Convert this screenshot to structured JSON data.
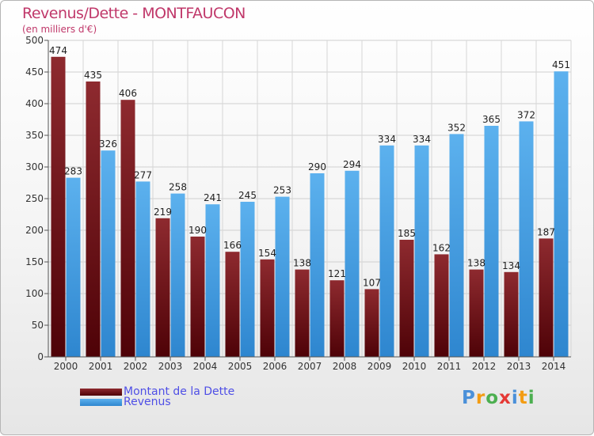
{
  "title": "Revenus/Dette - MONTFAUCON",
  "subtitle": "(en milliers d'€)",
  "legend": {
    "items": [
      {
        "label": "Montant de la Dette",
        "color": "#7a1a1f"
      },
      {
        "label": "Revenus",
        "color": "#3f9de3"
      }
    ]
  },
  "logo": {
    "text": "Proxiti",
    "letters": [
      {
        "char": "P",
        "color": "#4a90d9"
      },
      {
        "char": "r",
        "color": "#f39c12"
      },
      {
        "char": "o",
        "color": "#4caf50"
      },
      {
        "char": "x",
        "color": "#e53935"
      },
      {
        "char": "i",
        "color": "#4a90d9"
      },
      {
        "char": "t",
        "color": "#f39c12"
      },
      {
        "char": "i",
        "color": "#4caf50"
      }
    ]
  },
  "chart_data": {
    "type": "bar",
    "title": "Revenus/Dette - MONTFAUCON",
    "subtitle": "(en milliers d'€)",
    "categories": [
      "2000",
      "2001",
      "2002",
      "2003",
      "2004",
      "2005",
      "2006",
      "2007",
      "2008",
      "2009",
      "2010",
      "2011",
      "2012",
      "2013",
      "2014"
    ],
    "series": [
      {
        "name": "Montant de la Dette",
        "color": "#7a1a1f",
        "values": [
          474,
          435,
          406,
          219,
          190,
          166,
          154,
          138,
          121,
          107,
          185,
          162,
          138,
          134,
          187
        ]
      },
      {
        "name": "Revenus",
        "color": "#3f9de3",
        "values": [
          283,
          326,
          277,
          258,
          241,
          245,
          253,
          290,
          294,
          334,
          334,
          352,
          365,
          372,
          451
        ]
      }
    ],
    "ylim": [
      0,
      500
    ],
    "yticks": [
      0,
      50,
      100,
      150,
      200,
      250,
      300,
      350,
      400,
      450,
      500
    ],
    "grid": true,
    "legend_position": "bottom-left"
  }
}
